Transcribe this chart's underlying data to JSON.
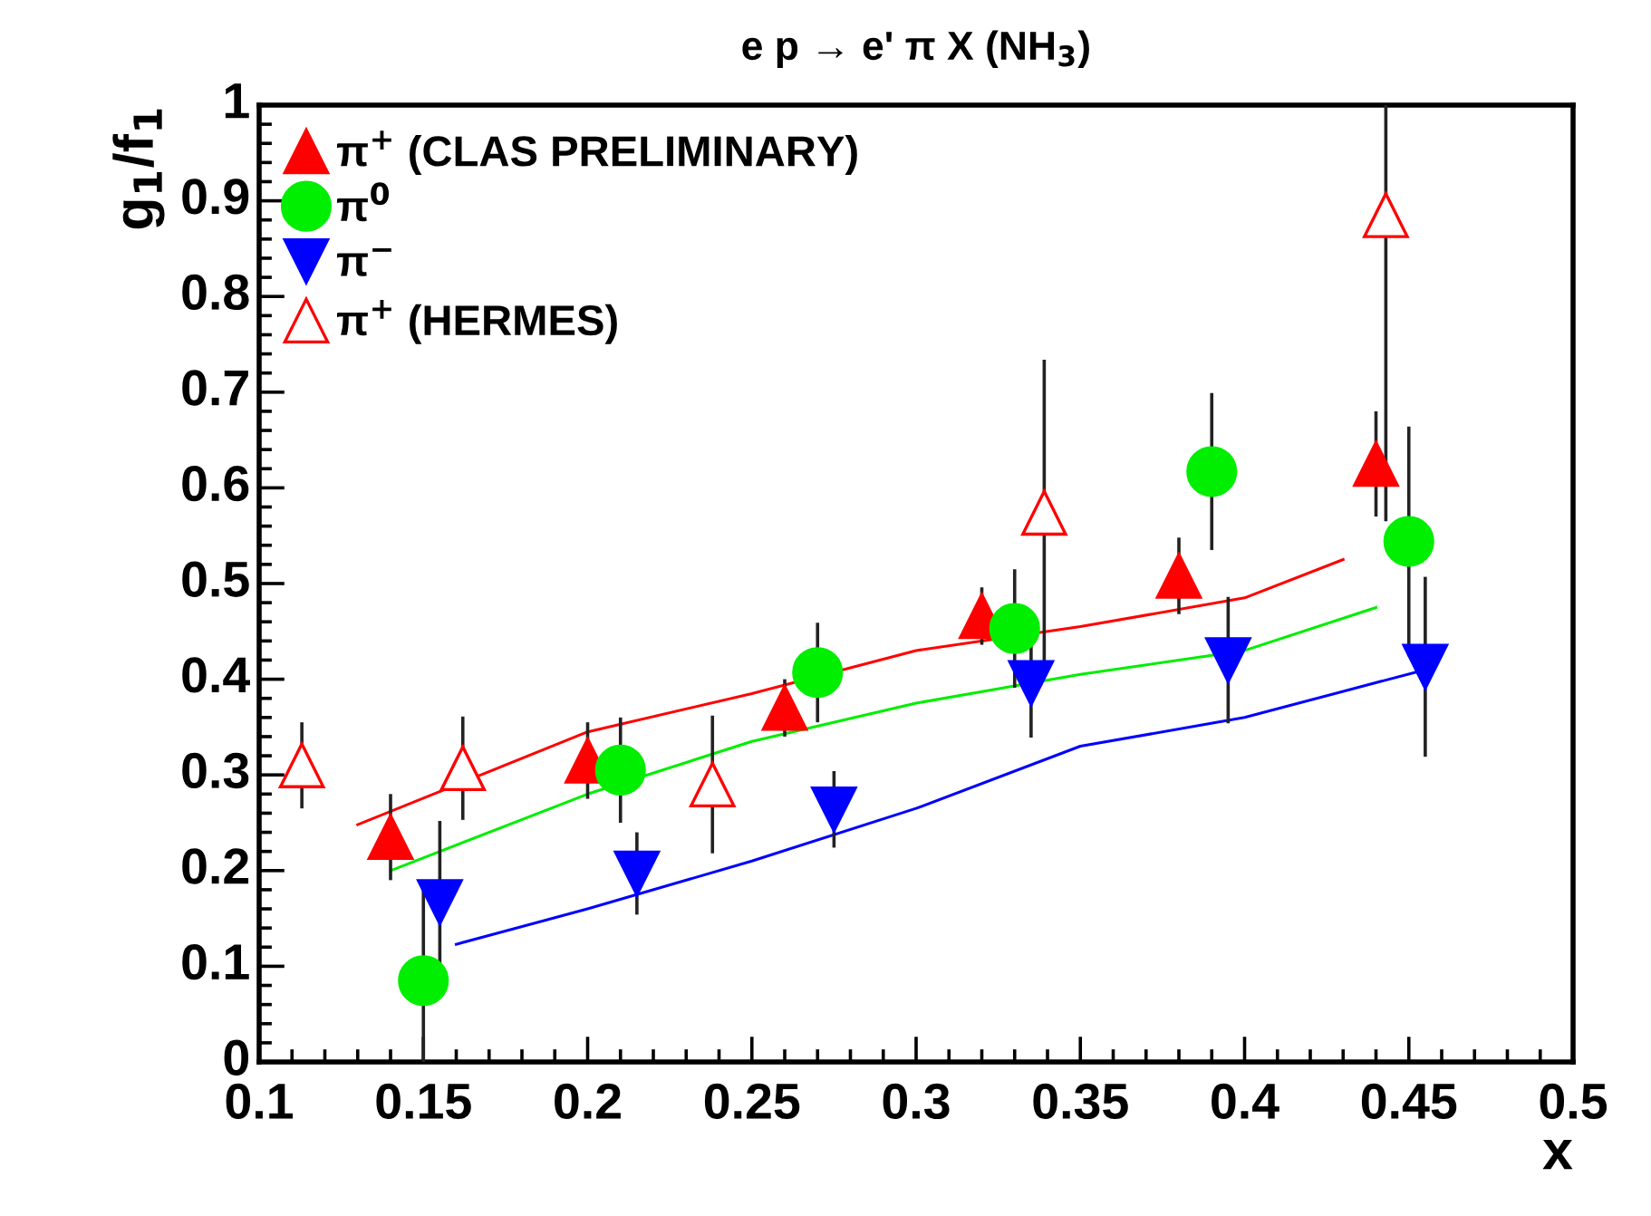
{
  "chart_data": {
    "type": "scatter",
    "title": "e p → e' π X (NH$_{3}$)",
    "xlabel": "x",
    "ylabel": "g$_{1}$/f$_{1}$",
    "xlim": [
      0.1,
      0.5
    ],
    "xticks": [
      0.1,
      0.15,
      0.2,
      0.25,
      0.3,
      0.35,
      0.4,
      0.45,
      0.5
    ],
    "ylim": [
      0,
      1
    ],
    "yticks": [
      0,
      0.1,
      0.2,
      0.3,
      0.4,
      0.5,
      0.6,
      0.7,
      0.8,
      0.9,
      1
    ],
    "grid": false,
    "legend": "top left",
    "series": [
      {
        "name": "π$^{+}$ (CLAS PRELIMINARY)",
        "color": "#ff0000",
        "marker": "triangle",
        "x": [
          0.14,
          0.2,
          0.26,
          0.32,
          0.38,
          0.44
        ],
        "values": [
          0.235,
          0.315,
          0.37,
          0.466,
          0.508,
          0.625
        ],
        "errors": [
          0.045,
          0.04,
          0.03,
          0.03,
          0.04,
          0.055
        ]
      },
      {
        "name": "π$^{0}$",
        "color": "#00ee00",
        "marker": "circle",
        "x": [
          0.15,
          0.21,
          0.27,
          0.33,
          0.39,
          0.45
        ],
        "values": [
          0.085,
          0.305,
          0.407,
          0.453,
          0.617,
          0.544
        ],
        "errors": [
          [
            0,
            0.19
          ],
          0.055,
          0.052,
          0.062,
          0.082,
          0.12
        ]
      },
      {
        "name": "π$^{−}$",
        "color": "#0000ff",
        "marker": "triangle_down",
        "x": [
          0.155,
          0.215,
          0.275,
          0.335,
          0.395,
          0.455
        ],
        "values": [
          0.167,
          0.197,
          0.264,
          0.396,
          0.42,
          0.413
        ],
        "errors": [
          0.085,
          0.043,
          0.04,
          0.057,
          0.066,
          0.094
        ]
      },
      {
        "name": "π$^{+}$ (HERMES)",
        "color": "#ff0000",
        "marker": "triangle_open",
        "x": [
          0.113,
          0.162,
          0.238,
          0.339,
          0.443
        ],
        "values": [
          0.31,
          0.307,
          0.29,
          0.574,
          0.885
        ],
        "errors": [
          0.045,
          0.054,
          0.072,
          0.16,
          [
            0.565,
            1.0
          ]
        ]
      },
      {
        "type": "line",
        "color": "#ff0000",
        "x": [
          0.13,
          0.2,
          0.25,
          0.3,
          0.35,
          0.4,
          0.43
        ],
        "values": [
          0.248,
          0.345,
          0.385,
          0.43,
          0.455,
          0.485,
          0.525
        ]
      },
      {
        "type": "line",
        "color": "#00ee00",
        "x": [
          0.14,
          0.2,
          0.25,
          0.3,
          0.35,
          0.4,
          0.44
        ],
        "values": [
          0.2,
          0.28,
          0.335,
          0.375,
          0.405,
          0.43,
          0.475
        ]
      },
      {
        "type": "line",
        "color": "#0000ff",
        "x": [
          0.16,
          0.2,
          0.25,
          0.3,
          0.35,
          0.4,
          0.455
        ],
        "values": [
          0.123,
          0.16,
          0.21,
          0.265,
          0.33,
          0.36,
          0.41
        ]
      }
    ]
  }
}
